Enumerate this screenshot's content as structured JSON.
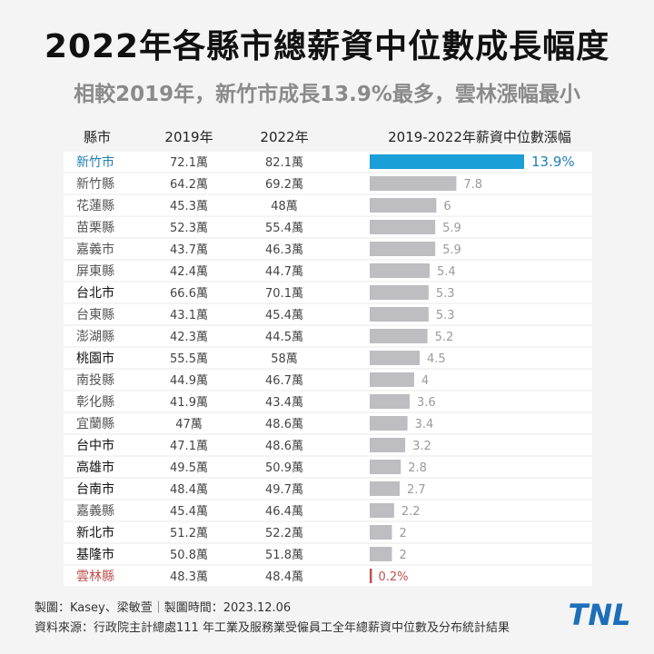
{
  "title": "2022年各縣市總薪資中位數成長幅度",
  "subtitle": "相較2019年，新竹市成長13.9%最多，雲林漲幅最小",
  "colors": {
    "highlight": "#1a9ed6",
    "bar": "#bdbdc2",
    "lowest": "#c0504d",
    "highlight_text": "#1f7fb5"
  },
  "chart_data": {
    "type": "bar",
    "column_headers": [
      "縣市",
      "2019年",
      "2022年",
      "2019-2022年薪資中位數漲幅"
    ],
    "xlim": [
      0,
      13.9
    ],
    "rows": [
      {
        "county": "新竹市",
        "y2019": "72.1萬",
        "y2022": "82.1萬",
        "growth": 13.9,
        "label": "13.9%",
        "style": "highlight"
      },
      {
        "county": "新竹縣",
        "y2019": "64.2萬",
        "y2022": "69.2萬",
        "growth": 7.8,
        "label": "7.8",
        "style": "county"
      },
      {
        "county": "花蓮縣",
        "y2019": "45.3萬",
        "y2022": "48萬",
        "growth": 6,
        "label": "6",
        "style": "county"
      },
      {
        "county": "苗栗縣",
        "y2019": "52.3萬",
        "y2022": "55.4萬",
        "growth": 5.9,
        "label": "5.9",
        "style": "county"
      },
      {
        "county": "嘉義市",
        "y2019": "43.7萬",
        "y2022": "46.3萬",
        "growth": 5.9,
        "label": "5.9",
        "style": "county"
      },
      {
        "county": "屏東縣",
        "y2019": "42.4萬",
        "y2022": "44.7萬",
        "growth": 5.4,
        "label": "5.4",
        "style": "county"
      },
      {
        "county": "台北市",
        "y2019": "66.6萬",
        "y2022": "70.1萬",
        "growth": 5.3,
        "label": "5.3",
        "style": "city"
      },
      {
        "county": "台東縣",
        "y2019": "43.1萬",
        "y2022": "45.4萬",
        "growth": 5.3,
        "label": "5.3",
        "style": "county"
      },
      {
        "county": "澎湖縣",
        "y2019": "42.3萬",
        "y2022": "44.5萬",
        "growth": 5.2,
        "label": "5.2",
        "style": "county"
      },
      {
        "county": "桃園市",
        "y2019": "55.5萬",
        "y2022": "58萬",
        "growth": 4.5,
        "label": "4.5",
        "style": "city"
      },
      {
        "county": "南投縣",
        "y2019": "44.9萬",
        "y2022": "46.7萬",
        "growth": 4,
        "label": "4",
        "style": "county"
      },
      {
        "county": "彰化縣",
        "y2019": "41.9萬",
        "y2022": "43.4萬",
        "growth": 3.6,
        "label": "3.6",
        "style": "county"
      },
      {
        "county": "宜蘭縣",
        "y2019": "47萬",
        "y2022": "48.6萬",
        "growth": 3.4,
        "label": "3.4",
        "style": "county"
      },
      {
        "county": "台中市",
        "y2019": "47.1萬",
        "y2022": "48.6萬",
        "growth": 3.2,
        "label": "3.2",
        "style": "city"
      },
      {
        "county": "高雄市",
        "y2019": "49.5萬",
        "y2022": "50.9萬",
        "growth": 2.8,
        "label": "2.8",
        "style": "city"
      },
      {
        "county": "台南市",
        "y2019": "48.4萬",
        "y2022": "49.7萬",
        "growth": 2.7,
        "label": "2.7",
        "style": "city"
      },
      {
        "county": "嘉義縣",
        "y2019": "45.4萬",
        "y2022": "46.4萬",
        "growth": 2.2,
        "label": "2.2",
        "style": "county"
      },
      {
        "county": "新北市",
        "y2019": "51.2萬",
        "y2022": "52.2萬",
        "growth": 2,
        "label": "2",
        "style": "city"
      },
      {
        "county": "基隆市",
        "y2019": "50.8萬",
        "y2022": "51.8萬",
        "growth": 2,
        "label": "2",
        "style": "city"
      },
      {
        "county": "雲林縣",
        "y2019": "48.3萬",
        "y2022": "48.4萬",
        "growth": 0.2,
        "label": "0.2%",
        "style": "lowest"
      }
    ]
  },
  "footer": {
    "credit": "製圖：Kasey、梁敏萱｜製圖時間：2023.12.06",
    "source": "資料來源：行政院主計總處111 年工業及服務業受僱員工全年總薪資中位數及分布統計結果"
  },
  "logo": {
    "text": "TNL",
    "color": "#1d6fb8"
  }
}
